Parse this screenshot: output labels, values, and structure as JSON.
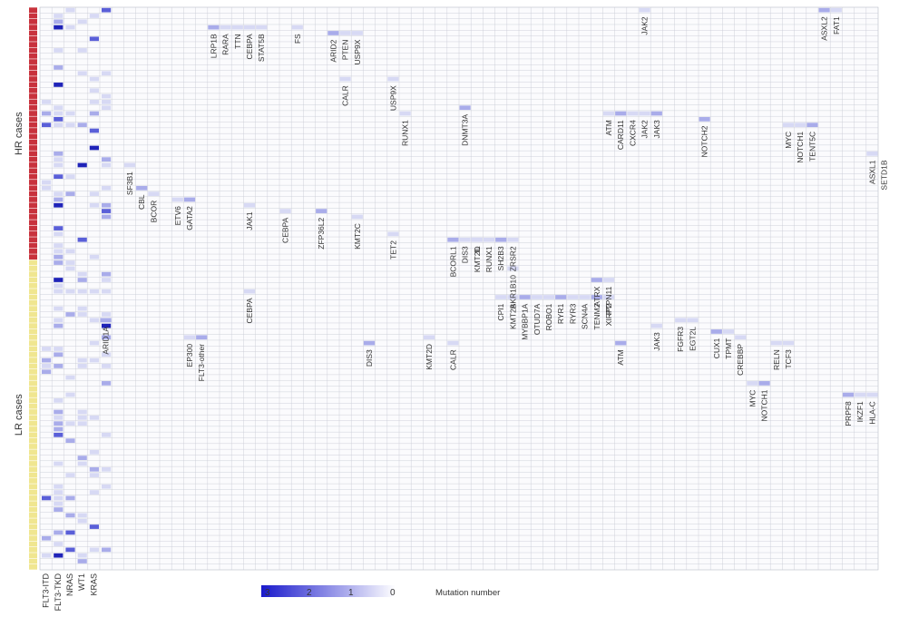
{
  "chart_data": {
    "type": "heatmap",
    "title": "",
    "row_groups": [
      {
        "label": "HR cases",
        "rows": 44,
        "color": "#c8323c"
      },
      {
        "label": "LR cases",
        "rows": 54,
        "color": "#f0e690"
      }
    ],
    "x_tick_labels_left": [
      "FLT3-ITD",
      "FLT3-TKD",
      "NRAS",
      "WT1",
      "KRAS"
    ],
    "legend": {
      "values": [
        "3",
        "2",
        "1",
        "0"
      ],
      "title": "Mutation number",
      "color_max": "#1a1acc",
      "color_min": "#ffffff"
    },
    "group_labels": [
      {
        "row": 3,
        "lines": [
          "LRP1B",
          "RARA",
          "TTN"
        ]
      },
      {
        "row": 3,
        "lines": [
          "CEBPA",
          "STAT5B"
        ]
      },
      {
        "row": 3,
        "lines": [
          "FS"
        ]
      },
      {
        "row": 4,
        "lines": [
          "ARID2",
          "PTEN",
          "USP9X"
        ]
      },
      {
        "row": 12,
        "lines": [
          "USP9X"
        ]
      },
      {
        "row": 12,
        "lines": [
          "CALR"
        ]
      },
      {
        "row": 17,
        "lines": [
          "DNMT3A"
        ]
      },
      {
        "row": 18,
        "lines": [
          "RUNX1"
        ]
      },
      {
        "row": 18,
        "lines": [
          "ATM",
          "CARD11",
          "CXCR4",
          "JAK2",
          "JAK3"
        ]
      },
      {
        "row": 19,
        "lines": [
          "NOTCH2"
        ]
      },
      {
        "row": 20,
        "lines": [
          "MYC",
          "NOTCH1",
          "TENT5C"
        ]
      },
      {
        "row": 0,
        "lines": [
          "JAK2"
        ]
      },
      {
        "row": 0,
        "lines": [
          "ASXL2",
          "FAT1"
        ]
      },
      {
        "row": 25,
        "lines": [
          "ASXL1",
          "SETD1B"
        ]
      },
      {
        "row": 27,
        "lines": [
          "SF3B1"
        ]
      },
      {
        "row": 31,
        "lines": [
          "CBL"
        ]
      },
      {
        "row": 32,
        "lines": [
          "BCOR"
        ]
      },
      {
        "row": 33,
        "lines": [
          "ETV6"
        ]
      },
      {
        "row": 33,
        "lines": [
          "GATA2"
        ]
      },
      {
        "row": 34,
        "lines": [
          "JAK1"
        ]
      },
      {
        "row": 35,
        "lines": [
          "CEBPA"
        ]
      },
      {
        "row": 35,
        "lines": [
          "ZFP36L2"
        ]
      },
      {
        "row": 36,
        "lines": [
          "KMT2C"
        ]
      },
      {
        "row": 39,
        "lines": [
          "TET2"
        ]
      },
      {
        "row": 40,
        "lines": [
          "BCORL1",
          "DIS3",
          "IL"
        ]
      },
      {
        "row": 40,
        "lines": [
          "KMT2D",
          "RUNX1",
          "SH2B3",
          "ZRSR2"
        ]
      },
      {
        "row": 45,
        "lines": [
          "AKR1B10"
        ]
      },
      {
        "row": 47,
        "lines": [
          "ATRX",
          "PTPN11"
        ]
      },
      {
        "row": 50,
        "lines": [
          "CPI1",
          "KMT2B",
          "MYBBP1A",
          "OTUD7A",
          "ROBO1",
          "RYR1",
          "RYR3",
          "SCN4A",
          "TENM2",
          "XIRP2"
        ]
      },
      {
        "row": 49,
        "lines": [
          "CEBPA"
        ]
      },
      {
        "row": 54,
        "lines": [
          "ARID1A"
        ]
      },
      {
        "row": 54,
        "lines": [
          "FGFR3",
          "EGT2L"
        ]
      },
      {
        "row": 55,
        "lines": [
          "JAK3"
        ]
      },
      {
        "row": 56,
        "lines": [
          "CUX1",
          "TPMT"
        ]
      },
      {
        "row": 57,
        "lines": [
          "CREBBP"
        ]
      },
      {
        "row": 57,
        "lines": [
          "EP300",
          "FLT3-other"
        ]
      },
      {
        "row": 58,
        "lines": [
          "DIS3"
        ]
      },
      {
        "row": 57,
        "lines": [
          "KMT2D"
        ]
      },
      {
        "row": 58,
        "lines": [
          "CALR"
        ]
      },
      {
        "row": 58,
        "lines": [
          "ATM"
        ]
      },
      {
        "row": 58,
        "lines": [
          "RELN",
          "TCF3"
        ]
      },
      {
        "row": 65,
        "lines": [
          "MYC",
          "NOTCH1"
        ]
      },
      {
        "row": 67,
        "lines": [
          "PRPF8",
          "IKZF1",
          "HLA-C"
        ]
      }
    ]
  }
}
